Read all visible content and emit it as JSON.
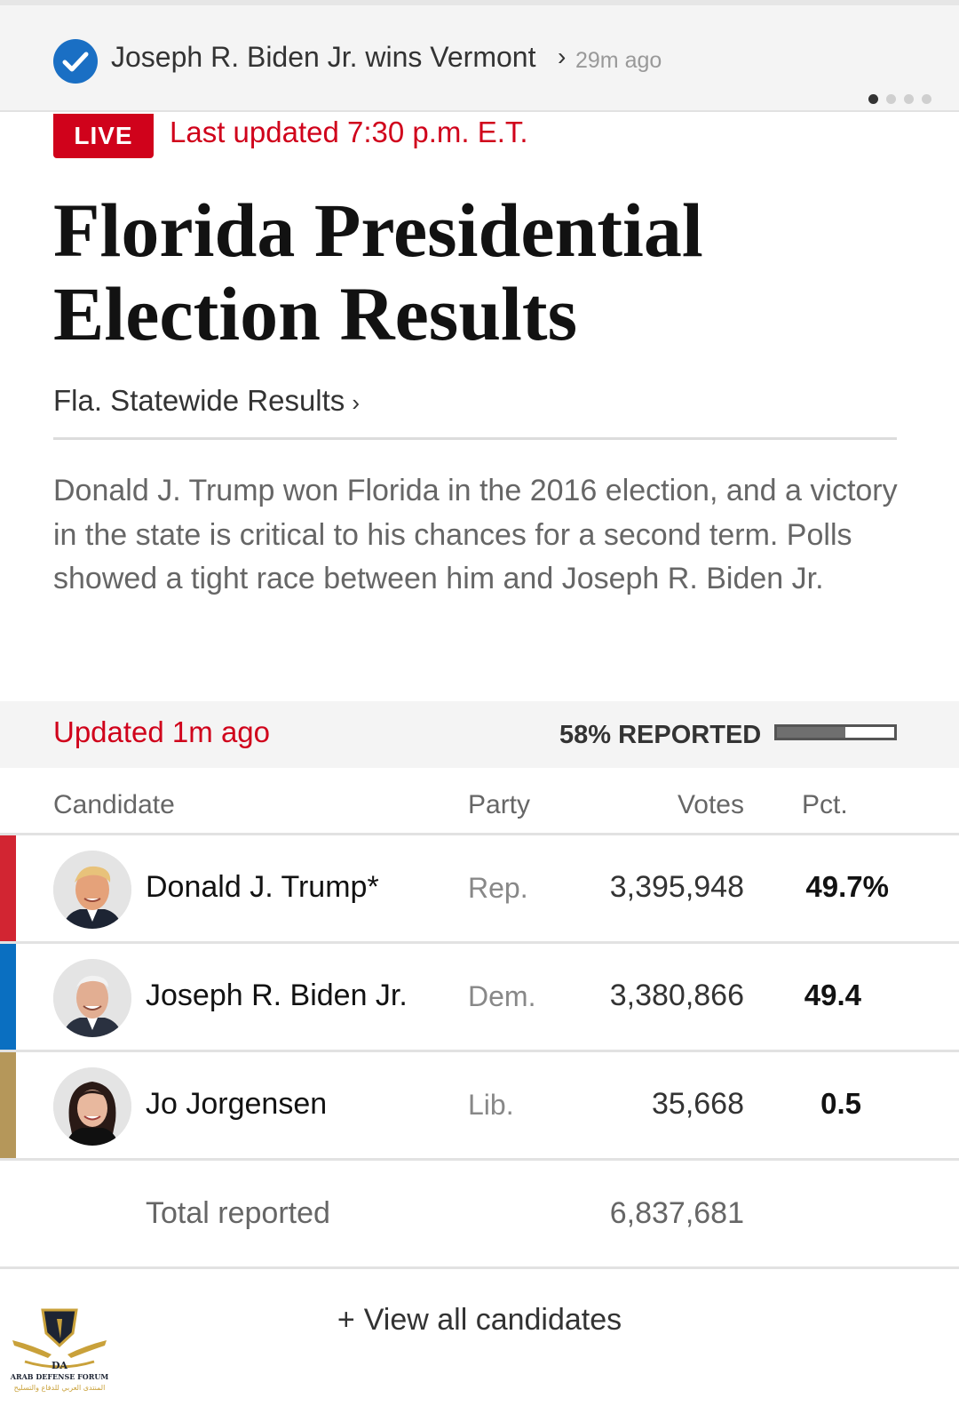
{
  "alert": {
    "headline": "Joseph R. Biden Jr. wins Vermont",
    "chevron": "›",
    "time": "29m ago",
    "icon": "check-circle-icon",
    "carousel_dots": 4,
    "carousel_active": 1
  },
  "live": {
    "badge": "LIVE",
    "updated": "Last updated 7:30 p.m. E.T."
  },
  "headline": "Florida Presidential Election Results",
  "statewide_link": "Fla. Statewide Results",
  "statewide_chevron": "›",
  "summary": "Donald J. Trump won Florida in the 2016 election, and a victory in the state is critical to his chances for a second term. Polls showed a tight race between him and Joseph R. Biden Jr.",
  "status": {
    "updated": "Updated 1m ago",
    "reported": "58% REPORTED",
    "reported_fraction": 0.58
  },
  "table": {
    "headers": {
      "candidate": "Candidate",
      "party": "Party",
      "votes": "Votes",
      "pct": "Pct."
    },
    "rows": [
      {
        "name": "Donald J. Trump*",
        "party": "Rep.",
        "votes": "3,395,948",
        "pct": "49.7%",
        "color": "#d22532"
      },
      {
        "name": "Joseph R. Biden Jr.",
        "party": "Dem.",
        "votes": "3,380,866",
        "pct": "49.4",
        "color": "#0a6fc1"
      },
      {
        "name": "Jo Jorgensen",
        "party": "Lib.",
        "votes": "35,668",
        "pct": "0.5",
        "color": "#b5975a"
      }
    ],
    "total_label": "Total reported",
    "total_votes": "6,837,681"
  },
  "view_all": {
    "plus": "+",
    "label": "View all candidates"
  },
  "watermark": {
    "monogram": "DA",
    "name": "ARAB DEFENSE FORUM",
    "arabic": "المنتدى العربي للدفاع والتسليح"
  },
  "colors": {
    "accent_red": "#d0021b",
    "check_blue": "#1a6fc4"
  }
}
